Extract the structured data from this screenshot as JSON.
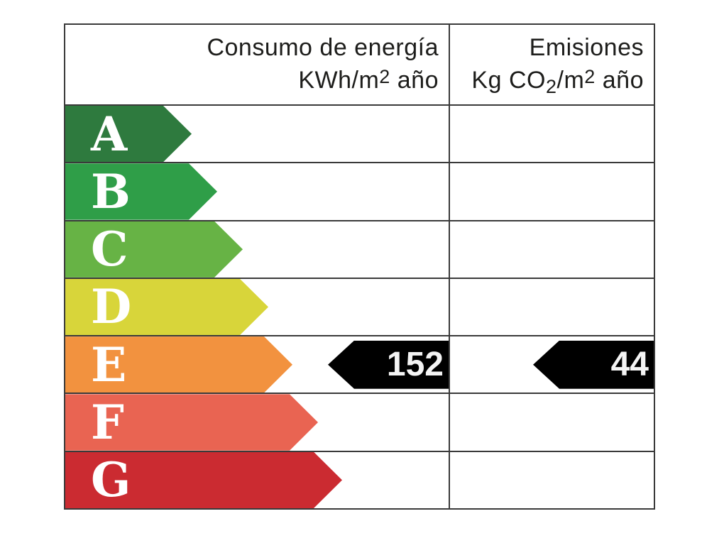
{
  "header": {
    "consumption": {
      "title_line": "Consumo de energía",
      "unit_prefix": "KWh/m",
      "unit_sup": "2",
      "unit_suffix": " año"
    },
    "emissions": {
      "title_line": "Emisiones",
      "unit_prefix": "Kg CO",
      "unit_sub": "2",
      "unit_mid": "/m",
      "unit_sup": "2",
      "unit_suffix": " año"
    }
  },
  "ratings": [
    {
      "letter": "A",
      "color": "#2e7a3e"
    },
    {
      "letter": "B",
      "color": "#2f9e48"
    },
    {
      "letter": "C",
      "color": "#67b345"
    },
    {
      "letter": "D",
      "color": "#d8d53a"
    },
    {
      "letter": "E",
      "color": "#f2923f"
    },
    {
      "letter": "F",
      "color": "#e96452"
    },
    {
      "letter": "G",
      "color": "#cb2b31"
    }
  ],
  "pointers": {
    "color": "#000000",
    "text_color": "#f4f4f4",
    "consumption_value": "152",
    "emissions_value": "44",
    "rating_row": "E"
  },
  "chart_data": {
    "type": "bar",
    "categories": [
      "A",
      "B",
      "C",
      "D",
      "E",
      "F",
      "G"
    ],
    "bar_colors": [
      "#2e7a3e",
      "#2f9e48",
      "#67b345",
      "#d8d53a",
      "#f2923f",
      "#e96452",
      "#cb2b31"
    ],
    "columns": [
      "Consumo de energía KWh/m2 año",
      "Emisiones Kg CO2/m2 año"
    ],
    "selected_rating": "E",
    "consumo_de_energia_kwh_m2_ano": 152,
    "emisiones_kg_co2_m2_ano": 44,
    "legend_position": "none",
    "grid": true
  }
}
